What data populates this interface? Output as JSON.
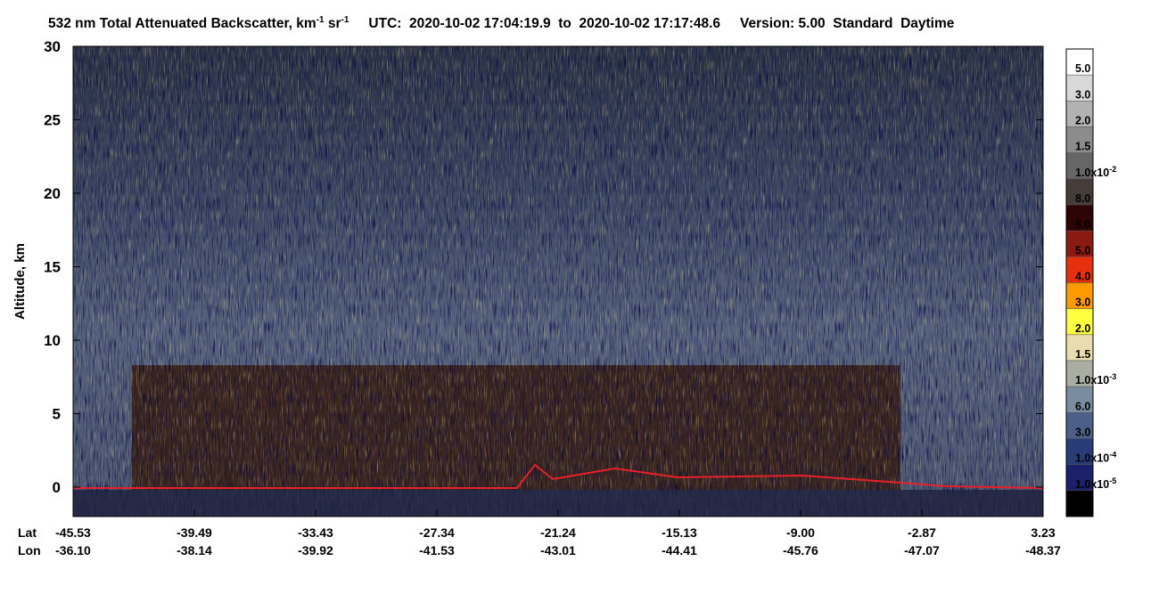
{
  "chart_data": {
    "type": "lidar-profile",
    "title": {
      "part1": "532 nm Total Attenuated Backscatter, km",
      "sup1": "-1",
      "part2": " sr",
      "sup2": "-1",
      "utc": "UTC:  2020-10-02 17:04:19.9  to  2020-10-02 17:17:48.6",
      "version": "Version: 5.00  Standard  Daytime"
    },
    "ylabel": "Altitude, km",
    "ylim": [
      -2,
      30
    ],
    "yticks": [
      0,
      5,
      10,
      15,
      20,
      25,
      30
    ],
    "lat_label": "Lat",
    "lon_label": "Lon",
    "lat": [
      "-45.53",
      "-39.49",
      "-33.43",
      "-27.34",
      "-21.24",
      "-15.13",
      "-9.00",
      "-2.87",
      "3.23"
    ],
    "lon": [
      "-36.10",
      "-38.14",
      "-39.92",
      "-41.53",
      "-43.01",
      "-44.41",
      "-45.76",
      "-47.07",
      "-48.37"
    ],
    "colorbar": [
      {
        "color": "#ffffff",
        "label": "5.0"
      },
      {
        "color": "#d8d8d8",
        "label": "3.0"
      },
      {
        "color": "#b2b2b2",
        "label": "2.0"
      },
      {
        "color": "#8c8c8c",
        "label": "1.5"
      },
      {
        "color": "#666666",
        "label": "1.0x10",
        "sup": "-2"
      },
      {
        "color": "#463c3a",
        "label": "8.0"
      },
      {
        "color": "#2e0505",
        "label": "6.0"
      },
      {
        "color": "#8b1a12",
        "label": "5.0"
      },
      {
        "color": "#e8300e",
        "label": "4.0"
      },
      {
        "color": "#ff9a00",
        "label": "3.0"
      },
      {
        "color": "#ffff40",
        "label": "2.0"
      },
      {
        "color": "#e9dcb0",
        "label": "1.5"
      },
      {
        "color": "#a9ada2",
        "label": "1.0x10",
        "sup": "-3"
      },
      {
        "color": "#7a8ca0",
        "label": "6.0"
      },
      {
        "color": "#4c5f88",
        "label": "3.0"
      },
      {
        "color": "#2a3c78",
        "label": "1.0x10",
        "sup": "-4"
      },
      {
        "color": "#1c1f6a",
        "label": "1.0x10",
        "sup": "-5"
      },
      {
        "color": "#000000"
      }
    ]
  }
}
